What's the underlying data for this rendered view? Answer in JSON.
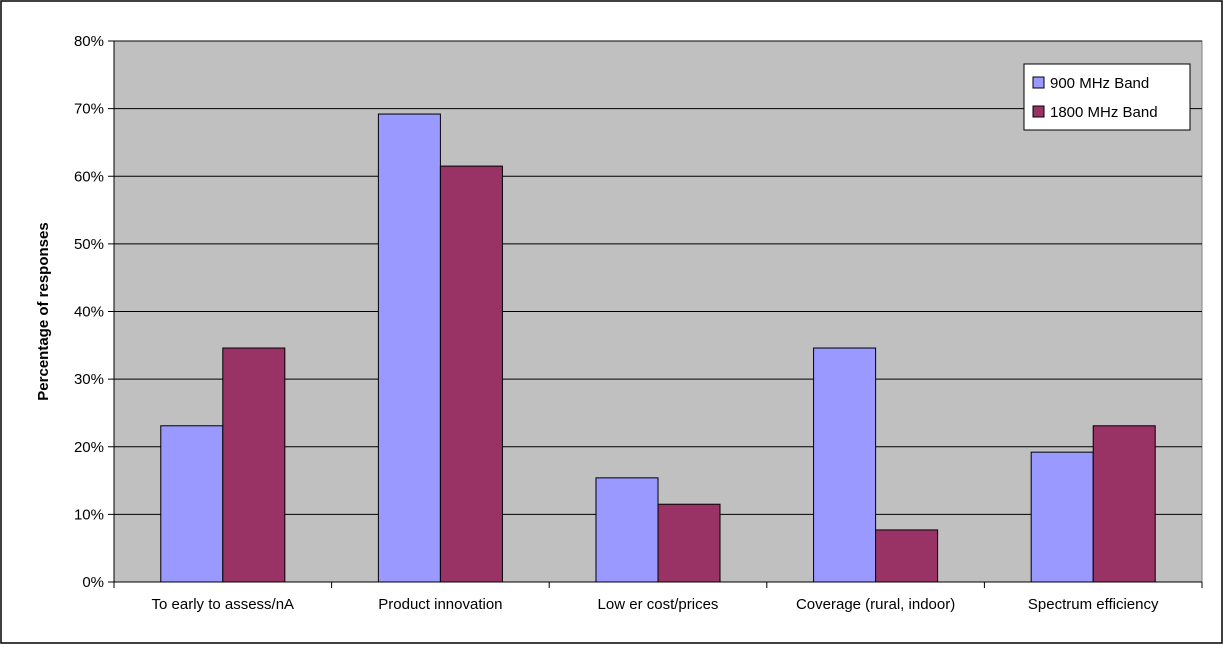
{
  "chart_data": {
    "type": "bar",
    "title": "",
    "xlabel": "",
    "ylabel": "Percentage of responses",
    "ylim": [
      0,
      80
    ],
    "y_ticks": [
      "0%",
      "10%",
      "20%",
      "30%",
      "40%",
      "50%",
      "60%",
      "70%",
      "80%"
    ],
    "grid": true,
    "legend_position": "top-right",
    "categories": [
      "To early to assess/nA",
      "Product innovation",
      "Low er cost/prices",
      "Coverage (rural, indoor)",
      "Spectrum efficiency"
    ],
    "series": [
      {
        "name": "900 MHz Band",
        "color": "#9999ff",
        "values": [
          23.1,
          69.2,
          15.4,
          34.6,
          19.2
        ]
      },
      {
        "name": "1800 MHz Band",
        "color": "#993366",
        "values": [
          34.6,
          61.5,
          11.5,
          7.7,
          23.1
        ]
      }
    ],
    "plot_background": "#c0c0c0"
  }
}
